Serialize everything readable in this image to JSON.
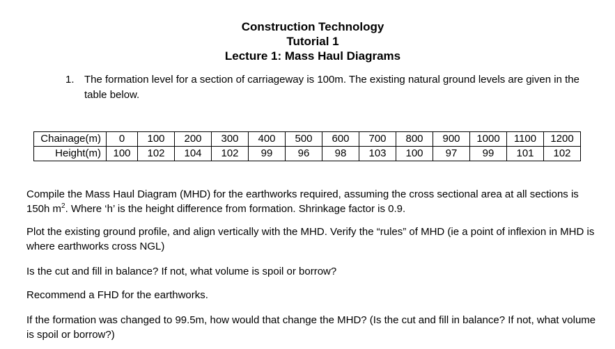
{
  "header": {
    "line1": "Construction Technology",
    "line2": "Tutorial 1",
    "line3": "Lecture 1: Mass Haul Diagrams"
  },
  "question": {
    "number": "1.",
    "text": "The formation level for a section of carriageway is 100m. The existing natural ground levels are given in the table below."
  },
  "table": {
    "row_labels": [
      "Chainage(m)",
      "Height(m)"
    ],
    "chainage": [
      "0",
      "100",
      "200",
      "300",
      "400",
      "500",
      "600",
      "700",
      "800",
      "900",
      "1000",
      "1100",
      "1200"
    ],
    "height": [
      "100",
      "102",
      "104",
      "102",
      "99",
      "96",
      "98",
      "103",
      "100",
      "97",
      "99",
      "101",
      "102"
    ]
  },
  "paragraphs": {
    "p1_before": "Compile the Mass Haul Diagram (MHD) for the earthworks required, assuming the cross sectional area at all sections is 150h m",
    "p1_sup": "2",
    "p1_after": ". Where ‘h’ is the height difference from formation. Shrinkage factor is 0.9.",
    "p2": "Plot the existing ground profile, and align vertically with the MHD. Verify the “rules” of MHD (ie a point of inflexion in MHD is where earthworks cross NGL)",
    "p3": "Is the cut and fill in balance? If not, what volume is spoil or borrow?",
    "p4": "Recommend a FHD for the earthworks.",
    "p5": "If the formation was changed to 99.5m, how would that change the MHD? (Is the cut and fill in balance? If not, what volume is spoil or borrow?)"
  }
}
